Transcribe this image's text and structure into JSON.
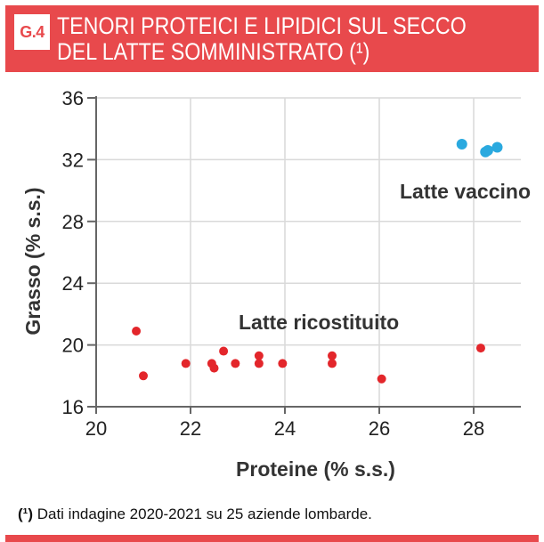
{
  "badge": "G.4",
  "title_lines": [
    "TENORI PROTEICI E LIPIDICI SUL SECCO",
    "DEL LATTE SOMMINISTRATO (¹)"
  ],
  "footnote": {
    "marker": "(¹)",
    "text": "Dati indagine 2020-2021 su 25 aziende lombarde."
  },
  "colors": {
    "brand": "#e8494c",
    "ricostituito": "#e3262b",
    "vaccino": "#2aa9df",
    "axis": "#666666",
    "grid": "#d9d9d9"
  },
  "chart_data": {
    "type": "scatter",
    "title": "TENORI PROTEICI E LIPIDICI SUL SECCO DEL LATTE SOMMINISTRATO (¹)",
    "xlabel": "Proteine (% s.s.)",
    "ylabel": "Grasso (% s.s.)",
    "xlim": [
      20,
      29
    ],
    "ylim": [
      16,
      36
    ],
    "xticks": [
      20,
      22,
      24,
      26,
      28
    ],
    "yticks": [
      16,
      20,
      24,
      28,
      32,
      36
    ],
    "grid": true,
    "series": [
      {
        "name": "Latte ricostituito",
        "color": "#e3262b",
        "points": [
          [
            20.85,
            20.9
          ],
          [
            21.0,
            18.0
          ],
          [
            21.9,
            18.8
          ],
          [
            22.45,
            18.8
          ],
          [
            22.5,
            18.5
          ],
          [
            22.7,
            19.6
          ],
          [
            22.95,
            18.8
          ],
          [
            23.45,
            19.3
          ],
          [
            23.45,
            18.8
          ],
          [
            23.95,
            18.8
          ],
          [
            25.0,
            19.3
          ],
          [
            25.0,
            18.8
          ],
          [
            26.05,
            17.8
          ],
          [
            28.15,
            19.8
          ]
        ]
      },
      {
        "name": "Latte vaccino",
        "color": "#2aa9df",
        "points": [
          [
            27.75,
            33.0
          ],
          [
            28.25,
            32.5
          ],
          [
            28.3,
            32.6
          ],
          [
            28.5,
            32.8
          ]
        ]
      }
    ]
  }
}
